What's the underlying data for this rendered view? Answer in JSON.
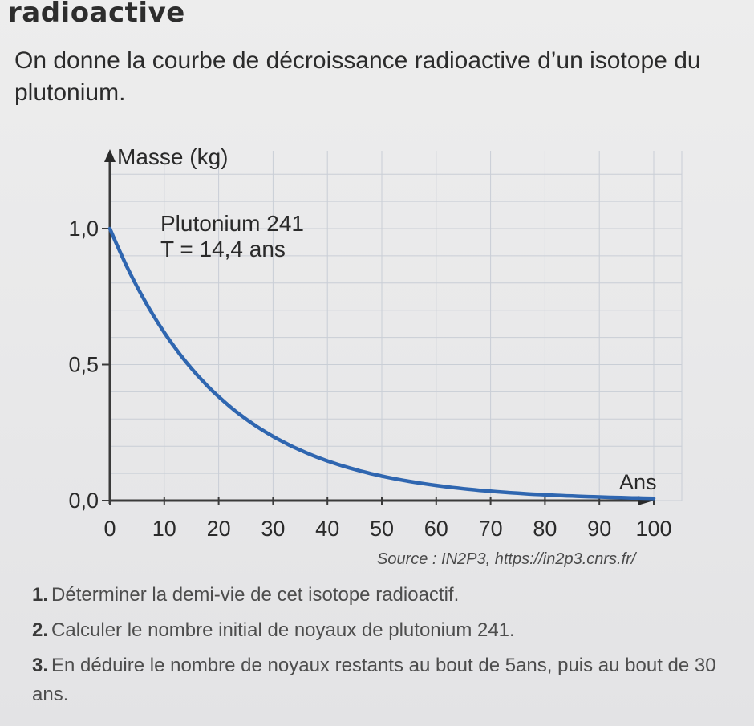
{
  "header": {
    "title": "radioactive",
    "intro": "On donne la courbe de décroissance radioactive d’un isotope du plutonium."
  },
  "chart_data": {
    "type": "line",
    "ylabel": "Masse (kg)",
    "xlabel": "Ans",
    "xlim": [
      0,
      100
    ],
    "ylim": [
      0,
      1.0
    ],
    "x_ticks": [
      "0",
      "10",
      "20",
      "30",
      "40",
      "50",
      "60",
      "70",
      "80",
      "90",
      "100"
    ],
    "y_ticks": [
      "0,0",
      "0,5",
      "1,0"
    ],
    "grid": true,
    "series": [
      {
        "name": "Plutonium 241",
        "color": "#2f66b0",
        "x": [
          0,
          5,
          10,
          14.4,
          20,
          25,
          30,
          35,
          40,
          45,
          50,
          55,
          60,
          65,
          70,
          75,
          80,
          85,
          90,
          95,
          100
        ],
        "y": [
          1.0,
          0.786,
          0.618,
          0.5,
          0.382,
          0.3,
          0.236,
          0.185,
          0.146,
          0.115,
          0.09,
          0.071,
          0.056,
          0.044,
          0.034,
          0.027,
          0.021,
          0.017,
          0.013,
          0.01,
          0.008
        ]
      }
    ],
    "annotations": [
      "Plutonium 241",
      "T = 14,4 ans"
    ]
  },
  "source": "Source : IN2P3, https://in2p3.cnrs.fr/",
  "questions": [
    {
      "num": "1.",
      "text": "Déterminer la demi-vie de cet isotope radioactif."
    },
    {
      "num": "2.",
      "text": "Calculer le nombre initial de noyaux de plutonium 241."
    },
    {
      "num": "3.",
      "text": "En déduire le nombre de noyaux restants au bout de 5ans, puis au bout de 30 ans."
    }
  ]
}
